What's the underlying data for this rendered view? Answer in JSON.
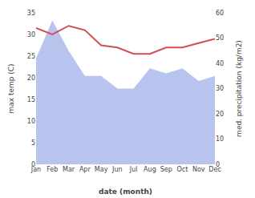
{
  "chart_data": {
    "type": "line",
    "categories": [
      "Jan",
      "Feb",
      "Mar",
      "Apr",
      "May",
      "Jun",
      "Jul",
      "Aug",
      "Sep",
      "Oct",
      "Nov",
      "Dec"
    ],
    "xlabel": "date (month)",
    "ylabel": "max temp (C)",
    "y2label": "med. precipitation (kg/m2)",
    "series": [
      {
        "type": "area",
        "axis": "y2",
        "color": "#b8c4ee",
        "values": [
          42,
          57,
          45,
          35,
          35,
          30,
          30,
          38,
          36,
          38,
          33,
          35
        ]
      },
      {
        "type": "line",
        "color": "#d05050",
        "values": [
          31.5,
          30.0,
          32.0,
          31.0,
          27.5,
          27.0,
          25.5,
          25.5,
          27.0,
          27.0,
          28.0,
          29.0
        ]
      }
    ],
    "ylim": [
      0,
      35
    ],
    "yticks": [
      0,
      5,
      10,
      15,
      20,
      25,
      30,
      35
    ],
    "y2lim": [
      0,
      60
    ],
    "y2ticks": [
      0,
      10,
      20,
      30,
      40,
      50,
      60
    ],
    "grid": false
  }
}
